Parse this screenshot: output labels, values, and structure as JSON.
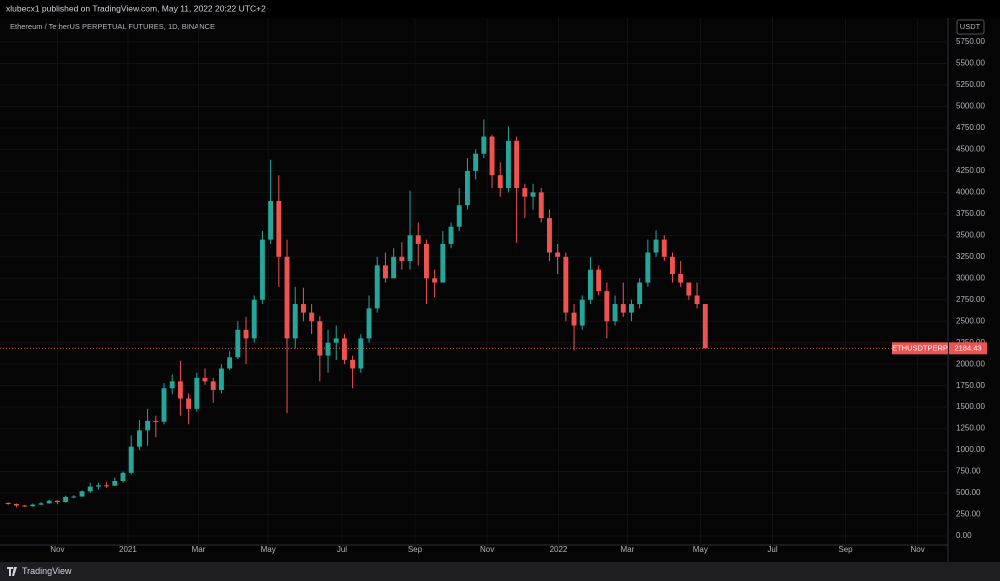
{
  "header": "xlubecx1 published on TradingView.com, May 11, 2022 20:22 UTC+2",
  "footer": "TradingView",
  "chart_data": {
    "type": "candlestick",
    "title": "Ethereum / TetherUS PERPETUAL FUTURES, 1D, BINANCE",
    "y_unit": "USDT",
    "up_color": "#26a69a",
    "down_color": "#ef5350",
    "grid": true,
    "x": [
      0,
      1,
      2,
      3,
      4,
      5,
      6,
      7,
      8,
      9,
      10,
      11,
      12,
      13,
      14,
      15,
      16,
      17,
      18,
      19,
      20,
      21,
      22,
      23,
      24,
      25,
      26,
      27,
      28,
      29,
      30,
      31,
      32,
      33,
      34,
      35,
      36,
      37,
      38,
      39,
      40,
      41,
      42,
      43,
      44,
      45,
      46,
      47,
      48,
      49,
      50,
      51,
      52,
      53,
      54,
      55,
      56,
      57,
      58,
      59,
      60,
      61,
      62,
      63,
      64,
      65,
      66,
      67,
      68,
      69,
      70,
      71,
      72,
      73,
      74,
      75,
      76,
      77,
      78,
      79,
      80,
      81,
      82,
      83,
      84,
      85
    ],
    "open": [
      385,
      372,
      355,
      346,
      365,
      380,
      410,
      395,
      455,
      460,
      520,
      575,
      590,
      585,
      640,
      735,
      1040,
      1230,
      1340,
      1330,
      1720,
      1800,
      1600,
      1480,
      1840,
      1800,
      1700,
      1950,
      2080,
      2400,
      2300,
      2750,
      3450,
      3900,
      3250,
      2300,
      2700,
      2600,
      2500,
      2100,
      2250,
      2300,
      2050,
      1950,
      2300,
      2650,
      3150,
      3000,
      3250,
      3200,
      3500,
      3400,
      3000,
      2950,
      3400,
      3600,
      3850,
      4250,
      4450,
      4650,
      4200,
      4050,
      4600,
      4050,
      3950,
      4000,
      3700,
      3300,
      3250,
      2600,
      2450,
      2750,
      3100,
      2850,
      2500,
      2700,
      2600,
      2700,
      2950,
      3300,
      3450,
      3250,
      3050,
      2950,
      2800,
      2700
    ],
    "high": [
      392,
      378,
      362,
      378,
      395,
      420,
      415,
      470,
      475,
      530,
      620,
      620,
      630,
      680,
      750,
      1170,
      1350,
      1480,
      1400,
      1780,
      1880,
      2040,
      1660,
      1900,
      1950,
      1840,
      2000,
      2150,
      2500,
      2550,
      2800,
      3550,
      4380,
      4200,
      3450,
      2900,
      2890,
      2700,
      2560,
      2400,
      2450,
      2350,
      2100,
      2350,
      2800,
      3250,
      3300,
      3350,
      3420,
      4020,
      3650,
      3450,
      3100,
      3550,
      3650,
      4050,
      4400,
      4500,
      4850,
      4670,
      4350,
      4770,
      4650,
      4100,
      4100,
      4050,
      3800,
      3400,
      3300,
      2700,
      2800,
      3250,
      3150,
      2950,
      2800,
      2950,
      2750,
      3000,
      3450,
      3560,
      3500,
      3300,
      3200,
      2950,
      2950,
      2700
    ],
    "low": [
      365,
      334,
      340,
      340,
      360,
      375,
      370,
      390,
      440,
      455,
      500,
      540,
      560,
      580,
      620,
      715,
      1000,
      1050,
      1150,
      1300,
      1650,
      1400,
      1300,
      1450,
      1760,
      1550,
      1660,
      1930,
      2060,
      2000,
      2250,
      2700,
      3400,
      2900,
      1430,
      2180,
      2500,
      2350,
      1800,
      1900,
      2050,
      2000,
      1720,
      1900,
      2250,
      2600,
      2950,
      3000,
      3100,
      3100,
      3150,
      2700,
      2780,
      2950,
      3350,
      3550,
      3800,
      4150,
      4400,
      4050,
      3950,
      4000,
      3410,
      3700,
      3800,
      3650,
      3200,
      3050,
      2500,
      2160,
      2400,
      2700,
      2800,
      2300,
      2450,
      2550,
      2500,
      2650,
      2900,
      3250,
      3200,
      2950,
      2900,
      2750,
      2650,
      2184.43
    ],
    "close": [
      372,
      355,
      346,
      365,
      380,
      410,
      395,
      455,
      460,
      520,
      575,
      590,
      585,
      640,
      735,
      1040,
      1230,
      1340,
      1330,
      1720,
      1800,
      1600,
      1480,
      1840,
      1800,
      1700,
      1950,
      2080,
      2400,
      2300,
      2750,
      3450,
      3900,
      3250,
      2300,
      2700,
      2600,
      2500,
      2100,
      2250,
      2300,
      2050,
      1950,
      2300,
      2650,
      3150,
      3000,
      3250,
      3200,
      3500,
      3400,
      3000,
      2950,
      3400,
      3600,
      3850,
      4250,
      4450,
      4650,
      4200,
      4050,
      4600,
      4050,
      3950,
      4000,
      3700,
      3300,
      3250,
      2600,
      2450,
      2750,
      3100,
      2850,
      2500,
      2700,
      2600,
      2700,
      2950,
      3300,
      3450,
      3250,
      3050,
      2950,
      2800,
      2700,
      2184.43
    ],
    "last_price": {
      "symbol": "ETHUSDTPERP",
      "value": 2184.43,
      "label": "2184.43"
    },
    "xlim": [
      -1,
      114.6
    ],
    "xticks": [
      {
        "value": 6,
        "label": "Nov"
      },
      {
        "value": 14.6,
        "label": "2021"
      },
      {
        "value": 23.2,
        "label": "Mar"
      },
      {
        "value": 31.7,
        "label": "May"
      },
      {
        "value": 40.7,
        "label": "Jul"
      },
      {
        "value": 49.6,
        "label": "Sep"
      },
      {
        "value": 58.4,
        "label": "Nov"
      },
      {
        "value": 67.1,
        "label": "2022"
      },
      {
        "value": 75.5,
        "label": "Mar"
      },
      {
        "value": 84.4,
        "label": "May"
      },
      {
        "value": 93.2,
        "label": "Jul"
      },
      {
        "value": 102.1,
        "label": "Sep"
      },
      {
        "value": 110.9,
        "label": "Nov"
      }
    ],
    "ylim": [
      -105,
      6030
    ],
    "yticks": [
      {
        "value": 0,
        "label": "0.00"
      },
      {
        "value": 250,
        "label": "250.00"
      },
      {
        "value": 500,
        "label": "500.00"
      },
      {
        "value": 750,
        "label": "750.00"
      },
      {
        "value": 1000,
        "label": "1000.00"
      },
      {
        "value": 1250,
        "label": "1250.00"
      },
      {
        "value": 1500,
        "label": "1500.00"
      },
      {
        "value": 1750,
        "label": "1750.00"
      },
      {
        "value": 2000,
        "label": "2000.00"
      },
      {
        "value": 2250,
        "label": "2250.00"
      },
      {
        "value": 2500,
        "label": "2500.00"
      },
      {
        "value": 2750,
        "label": "2750.00"
      },
      {
        "value": 3000,
        "label": "3000.00"
      },
      {
        "value": 3250,
        "label": "3250.00"
      },
      {
        "value": 3500,
        "label": "3500.00"
      },
      {
        "value": 3750,
        "label": "3750.00"
      },
      {
        "value": 4000,
        "label": "4000.00"
      },
      {
        "value": 4250,
        "label": "4250.00"
      },
      {
        "value": 4500,
        "label": "4500.00"
      },
      {
        "value": 4750,
        "label": "4750.00"
      },
      {
        "value": 5000,
        "label": "5000.00"
      },
      {
        "value": 5250,
        "label": "5250.00"
      },
      {
        "value": 5500,
        "label": "5500.00"
      },
      {
        "value": 5750,
        "label": "5750.00"
      }
    ]
  }
}
